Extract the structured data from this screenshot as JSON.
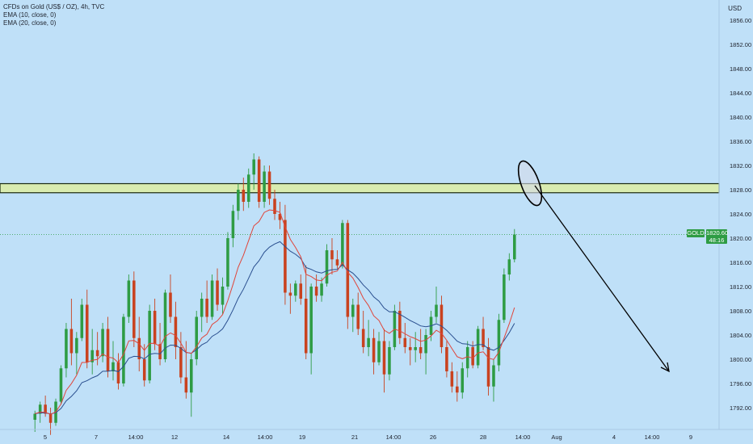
{
  "legend": {
    "symbol": "CFDs on Gold (US$ / OZ), 4h, TVC",
    "ema10": "EMA (10, close, 0)",
    "ema20": "EMA (20, close, 0)"
  },
  "currency": "USD",
  "price_axis": {
    "ticks": [
      "1856.00",
      "1852.00",
      "1848.00",
      "1844.00",
      "1840.00",
      "1836.00",
      "1832.00",
      "1828.00",
      "1824.00",
      "1820.00",
      "1816.00",
      "1812.00",
      "1808.00",
      "1804.00",
      "1800.00",
      "1796.00",
      "1792.00"
    ]
  },
  "time_axis": {
    "ticks": [
      "5",
      "7",
      "14:00",
      "12",
      "14",
      "14:00",
      "19",
      "21",
      "14:00",
      "26",
      "28",
      "14:00",
      "Aug",
      "4",
      "14:00",
      "9"
    ]
  },
  "current_price": {
    "symbol": "GOLD",
    "value": "1820.60",
    "countdown": "48:16"
  },
  "colors": {
    "background": "#bfe0f8",
    "up": "#2e9c44",
    "down": "#c9421f",
    "ema10": "#e0453a",
    "ema20": "#2a4f8f",
    "zone": "#d9ecb0"
  },
  "chart_data": {
    "type": "candlestick",
    "timeframe": "4h",
    "ylim": [
      1790,
      1858
    ],
    "resistance_zone": [
      1827.5,
      1829.0
    ],
    "current_price": 1820.6,
    "candles": [
      [
        1790.0,
        1791.5,
        1788.0,
        1791.0
      ],
      [
        1791.0,
        1793.0,
        1789.5,
        1792.5
      ],
      [
        1792.5,
        1794.0,
        1790.5,
        1791.0
      ],
      [
        1791.0,
        1792.0,
        1787.5,
        1789.5
      ],
      [
        1789.5,
        1793.5,
        1789.0,
        1793.0
      ],
      [
        1793.0,
        1799.0,
        1792.5,
        1798.5
      ],
      [
        1798.5,
        1806.0,
        1797.0,
        1805.0
      ],
      [
        1805.0,
        1810.0,
        1799.0,
        1801.0
      ],
      [
        1801.0,
        1804.5,
        1797.5,
        1803.5
      ],
      [
        1803.5,
        1810.0,
        1803.0,
        1809.0
      ],
      [
        1809.0,
        1811.5,
        1798.5,
        1799.5
      ],
      [
        1799.5,
        1805.0,
        1797.5,
        1801.5
      ],
      [
        1801.5,
        1804.5,
        1799.0,
        1800.5
      ],
      [
        1800.5,
        1806.0,
        1799.5,
        1805.0
      ],
      [
        1805.0,
        1807.0,
        1797.0,
        1798.0
      ],
      [
        1798.0,
        1803.0,
        1796.5,
        1799.5
      ],
      [
        1799.5,
        1801.0,
        1795.0,
        1796.0
      ],
      [
        1796.0,
        1807.5,
        1795.5,
        1807.0
      ],
      [
        1807.0,
        1814.0,
        1806.0,
        1813.0
      ],
      [
        1813.0,
        1814.5,
        1802.0,
        1803.5
      ],
      [
        1803.5,
        1807.0,
        1798.0,
        1800.0
      ],
      [
        1800.0,
        1802.5,
        1795.5,
        1796.5
      ],
      [
        1796.5,
        1809.0,
        1796.0,
        1808.0
      ],
      [
        1808.0,
        1810.0,
        1801.5,
        1802.5
      ],
      [
        1802.5,
        1806.0,
        1799.0,
        1800.0
      ],
      [
        1800.0,
        1811.5,
        1799.5,
        1811.0
      ],
      [
        1811.0,
        1814.0,
        1806.0,
        1807.0
      ],
      [
        1807.0,
        1809.5,
        1800.0,
        1802.0
      ],
      [
        1802.0,
        1804.5,
        1796.0,
        1797.0
      ],
      [
        1797.0,
        1803.0,
        1793.5,
        1794.5
      ],
      [
        1794.5,
        1801.0,
        1790.5,
        1800.0
      ],
      [
        1800.0,
        1808.0,
        1799.0,
        1807.0
      ],
      [
        1807.0,
        1811.0,
        1804.5,
        1810.0
      ],
      [
        1810.0,
        1813.0,
        1806.0,
        1807.0
      ],
      [
        1807.0,
        1814.0,
        1806.5,
        1813.0
      ],
      [
        1813.0,
        1815.0,
        1808.0,
        1809.0
      ],
      [
        1809.0,
        1813.5,
        1807.5,
        1812.0
      ],
      [
        1812.0,
        1821.0,
        1811.5,
        1820.0
      ],
      [
        1820.0,
        1825.5,
        1818.5,
        1824.5
      ],
      [
        1824.5,
        1829.0,
        1823.0,
        1828.0
      ],
      [
        1828.0,
        1830.0,
        1824.5,
        1826.0
      ],
      [
        1826.0,
        1831.5,
        1825.0,
        1830.5
      ],
      [
        1830.5,
        1834.0,
        1828.0,
        1833.0
      ],
      [
        1833.0,
        1833.5,
        1825.0,
        1826.0
      ],
      [
        1826.0,
        1832.0,
        1825.0,
        1831.0
      ],
      [
        1831.0,
        1832.0,
        1825.5,
        1826.5
      ],
      [
        1826.5,
        1828.0,
        1823.0,
        1824.0
      ],
      [
        1824.0,
        1826.0,
        1821.5,
        1823.0
      ],
      [
        1823.0,
        1825.5,
        1809.0,
        1811.0
      ],
      [
        1811.0,
        1812.5,
        1807.5,
        1810.5
      ],
      [
        1810.5,
        1813.0,
        1809.5,
        1812.5
      ],
      [
        1812.5,
        1814.0,
        1809.0,
        1810.0
      ],
      [
        1810.0,
        1815.5,
        1800.0,
        1801.0
      ],
      [
        1801.0,
        1812.5,
        1797.5,
        1812.0
      ],
      [
        1812.0,
        1814.0,
        1809.5,
        1810.5
      ],
      [
        1810.5,
        1813.5,
        1809.5,
        1812.5
      ],
      [
        1812.5,
        1819.0,
        1812.0,
        1818.0
      ],
      [
        1818.0,
        1820.0,
        1814.0,
        1816.5
      ],
      [
        1816.5,
        1818.0,
        1815.0,
        1815.5
      ],
      [
        1815.5,
        1823.0,
        1815.0,
        1822.5
      ],
      [
        1822.5,
        1823.0,
        1805.0,
        1807.0
      ],
      [
        1807.0,
        1810.0,
        1804.5,
        1809.0
      ],
      [
        1809.0,
        1811.0,
        1804.0,
        1805.0
      ],
      [
        1805.0,
        1808.0,
        1801.0,
        1802.0
      ],
      [
        1802.0,
        1806.5,
        1800.5,
        1803.5
      ],
      [
        1803.5,
        1805.0,
        1797.5,
        1799.5
      ],
      [
        1799.5,
        1804.5,
        1799.0,
        1803.0
      ],
      [
        1803.0,
        1805.0,
        1794.5,
        1797.5
      ],
      [
        1797.5,
        1803.0,
        1796.5,
        1802.0
      ],
      [
        1802.0,
        1809.0,
        1801.5,
        1808.0
      ],
      [
        1808.0,
        1809.5,
        1802.5,
        1803.5
      ],
      [
        1803.5,
        1806.0,
        1801.0,
        1802.0
      ],
      [
        1802.0,
        1803.5,
        1799.0,
        1801.5
      ],
      [
        1801.5,
        1804.5,
        1799.5,
        1802.0
      ],
      [
        1802.0,
        1805.0,
        1800.0,
        1801.0
      ],
      [
        1801.0,
        1805.0,
        1797.5,
        1804.0
      ],
      [
        1804.0,
        1808.0,
        1803.0,
        1807.0
      ],
      [
        1807.0,
        1812.0,
        1806.0,
        1809.0
      ],
      [
        1809.0,
        1810.5,
        1801.0,
        1802.0
      ],
      [
        1802.0,
        1803.0,
        1797.0,
        1798.0
      ],
      [
        1798.0,
        1799.5,
        1794.5,
        1795.5
      ],
      [
        1795.5,
        1798.0,
        1793.0,
        1794.5
      ],
      [
        1794.5,
        1799.5,
        1793.5,
        1798.5
      ],
      [
        1798.5,
        1803.0,
        1797.0,
        1802.0
      ],
      [
        1802.0,
        1803.0,
        1798.5,
        1799.0
      ],
      [
        1799.0,
        1805.5,
        1798.5,
        1805.0
      ],
      [
        1805.0,
        1807.0,
        1801.5,
        1802.0
      ],
      [
        1802.0,
        1803.5,
        1794.0,
        1795.5
      ],
      [
        1795.5,
        1800.0,
        1793.0,
        1799.0
      ],
      [
        1799.0,
        1807.5,
        1798.0,
        1806.5
      ],
      [
        1806.5,
        1815.0,
        1806.0,
        1814.0
      ],
      [
        1814.0,
        1817.5,
        1813.0,
        1816.5
      ],
      [
        1816.5,
        1821.5,
        1816.0,
        1820.6
      ]
    ]
  }
}
